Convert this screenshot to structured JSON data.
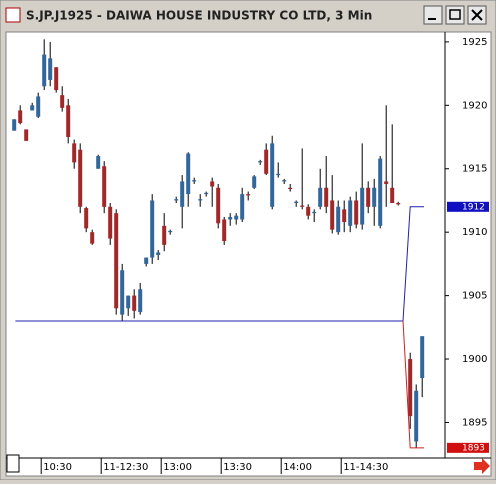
{
  "chart_data": {
    "type": "candlestick",
    "title": "S.JP.J1925 - DAIWA HOUSE INDUSTRY CO LTD, 3 Min",
    "up_color": "#336699",
    "down_color": "#a02828",
    "x": [
      0,
      1,
      2,
      3,
      4,
      5,
      6,
      7,
      8,
      9,
      10,
      11,
      12,
      13,
      14,
      15,
      16,
      17,
      18,
      19,
      20,
      21,
      22,
      23,
      24,
      25,
      26,
      27,
      28,
      29,
      30,
      31,
      32,
      33,
      34,
      35,
      36,
      37,
      38,
      39,
      40,
      41,
      42,
      43,
      44,
      45,
      46,
      47,
      48,
      49,
      50,
      51,
      52,
      53,
      54,
      55,
      56,
      57,
      58,
      59,
      60,
      61,
      62,
      63,
      64,
      66,
      67,
      68
    ],
    "open": [
      1918,
      1919.6,
      1918.1,
      1919.6,
      1919.1,
      1921.5,
      1922,
      1923,
      1920.8,
      1920,
      1917,
      1916.5,
      1911.9,
      1910,
      1915,
      1915.2,
      1912,
      1911.5,
      1903.5,
      1904,
      1905,
      1903.7,
      1907.5,
      1908,
      1908.2,
      1910.5,
      1910,
      1912.5,
      1912,
      1913,
      1914,
      1912.5,
      1913,
      1914,
      1913.5,
      1911,
      1911,
      1911,
      1911,
      1913,
      1913.5,
      1915.5,
      1916.5,
      1912,
      1914.5,
      1914,
      1913.5,
      1912.3,
      1912.1,
      1912,
      1911.5,
      1912,
      1913.5,
      1912.5,
      1910,
      1911.8,
      1910.5,
      1912.5,
      1910.6,
      1913.5,
      1912,
      1910.5,
      1914,
      1913.5,
      1912.3,
      1900,
      1893.5,
      1898.5
    ],
    "high": [
      1918.9,
      1920,
      1918.1,
      1920.2,
      1921,
      1925.2,
      1925,
      1923,
      1921.5,
      1920.5,
      1917.3,
      1917,
      1912,
      1910.2,
      1916.1,
      1915.6,
      1912.3,
      1911.8,
      1907.5,
      1905,
      1905.5,
      1906,
      1908,
      1913,
      1908.6,
      1911.5,
      1910.2,
      1912.8,
      1914.5,
      1916.3,
      1914.3,
      1913,
      1913.2,
      1914.3,
      1913.8,
      1911.2,
      1911.5,
      1911.5,
      1913.5,
      1913.2,
      1914.5,
      1915.7,
      1917,
      1917.6,
      1915.5,
      1914.2,
      1913.8,
      1912.5,
      1916.6,
      1912.2,
      1911.8,
      1915,
      1916,
      1914.5,
      1912.5,
      1912.5,
      1912.8,
      1913.2,
      1917,
      1914,
      1914.2,
      1916,
      1920,
      1918.5,
      1912.4,
      1900.5,
      1898,
      1901.8
    ],
    "low": [
      1918,
      1918.5,
      1917.2,
      1919.6,
      1919,
      1921.2,
      1921.5,
      1921,
      1919.5,
      1917,
      1915,
      1911.5,
      1910,
      1909,
      1915,
      1911.5,
      1909,
      1903.5,
      1903,
      1903.4,
      1903.2,
      1903.5,
      1907.3,
      1907.5,
      1907.8,
      1908.5,
      1909.8,
      1912.3,
      1910.3,
      1912,
      1913.8,
      1912,
      1912.8,
      1912,
      1910.3,
      1909,
      1910.5,
      1910.6,
      1910.8,
      1912.5,
      1913.4,
      1915.3,
      1914.5,
      1911.8,
      1914.3,
      1913.8,
      1913.2,
      1912,
      1911.8,
      1911,
      1910.8,
      1911.8,
      1911.5,
      1909.9,
      1909.8,
      1910,
      1910,
      1910.3,
      1910.2,
      1911.5,
      1910.5,
      1910.3,
      1912,
      1912.5,
      1912.1,
      1894.5,
      1893,
      1897
    ],
    "close": [
      1918.9,
      1918.6,
      1917.2,
      1920,
      1920.7,
      1924,
      1923.7,
      1921.2,
      1919.8,
      1917.5,
      1915.5,
      1912,
      1910.3,
      1909.1,
      1916,
      1912,
      1909.5,
      1904,
      1907,
      1905,
      1903.8,
      1905.5,
      1908,
      1912.5,
      1908.4,
      1909,
      1910.1,
      1912.6,
      1914,
      1916.2,
      1914.1,
      1912.6,
      1913.1,
      1913.6,
      1910.7,
      1909.3,
      1911.2,
      1911.3,
      1913,
      1912.9,
      1914.4,
      1915.6,
      1914.6,
      1917,
      1914.6,
      1914.1,
      1913.4,
      1912.4,
      1912,
      1911.3,
      1911.6,
      1913.5,
      1912,
      1910.2,
      1912,
      1910.8,
      1912.5,
      1910.6,
      1913.5,
      1912,
      1913.5,
      1915.8,
      1913.8,
      1912.3,
      1912.2,
      1895.5,
      1897.5,
      1901.8
    ],
    "lines": [
      {
        "color": "#2020b0",
        "x": [
          0.2,
          64.8,
          66,
          68.3
        ],
        "values": [
          1903,
          1903,
          1912,
          1912
        ]
      },
      {
        "color": "#d02020",
        "x": [
          64.8,
          66,
          68.3
        ],
        "values": [
          1903,
          1893,
          1893
        ]
      }
    ],
    "price_markers": [
      {
        "value": 1912,
        "color": "#1010c0"
      },
      {
        "value": 1893,
        "color": "#d01010"
      }
    ],
    "xlim": [
      -1.2,
      71.8
    ],
    "xticks": [
      {
        "value": 4.5,
        "label": "10:30"
      },
      {
        "value": 14.5,
        "label": "11-12:30"
      },
      {
        "value": 24.5,
        "label": "13:00"
      },
      {
        "value": 34.5,
        "label": "13:30"
      },
      {
        "value": 44.5,
        "label": "14:00"
      },
      {
        "value": 54.5,
        "label": "11-14:30"
      }
    ],
    "ylim": [
      1892.2,
      1925.7
    ],
    "yticks": [
      1895,
      1900,
      1905,
      1910,
      1915,
      1920,
      1925
    ]
  }
}
